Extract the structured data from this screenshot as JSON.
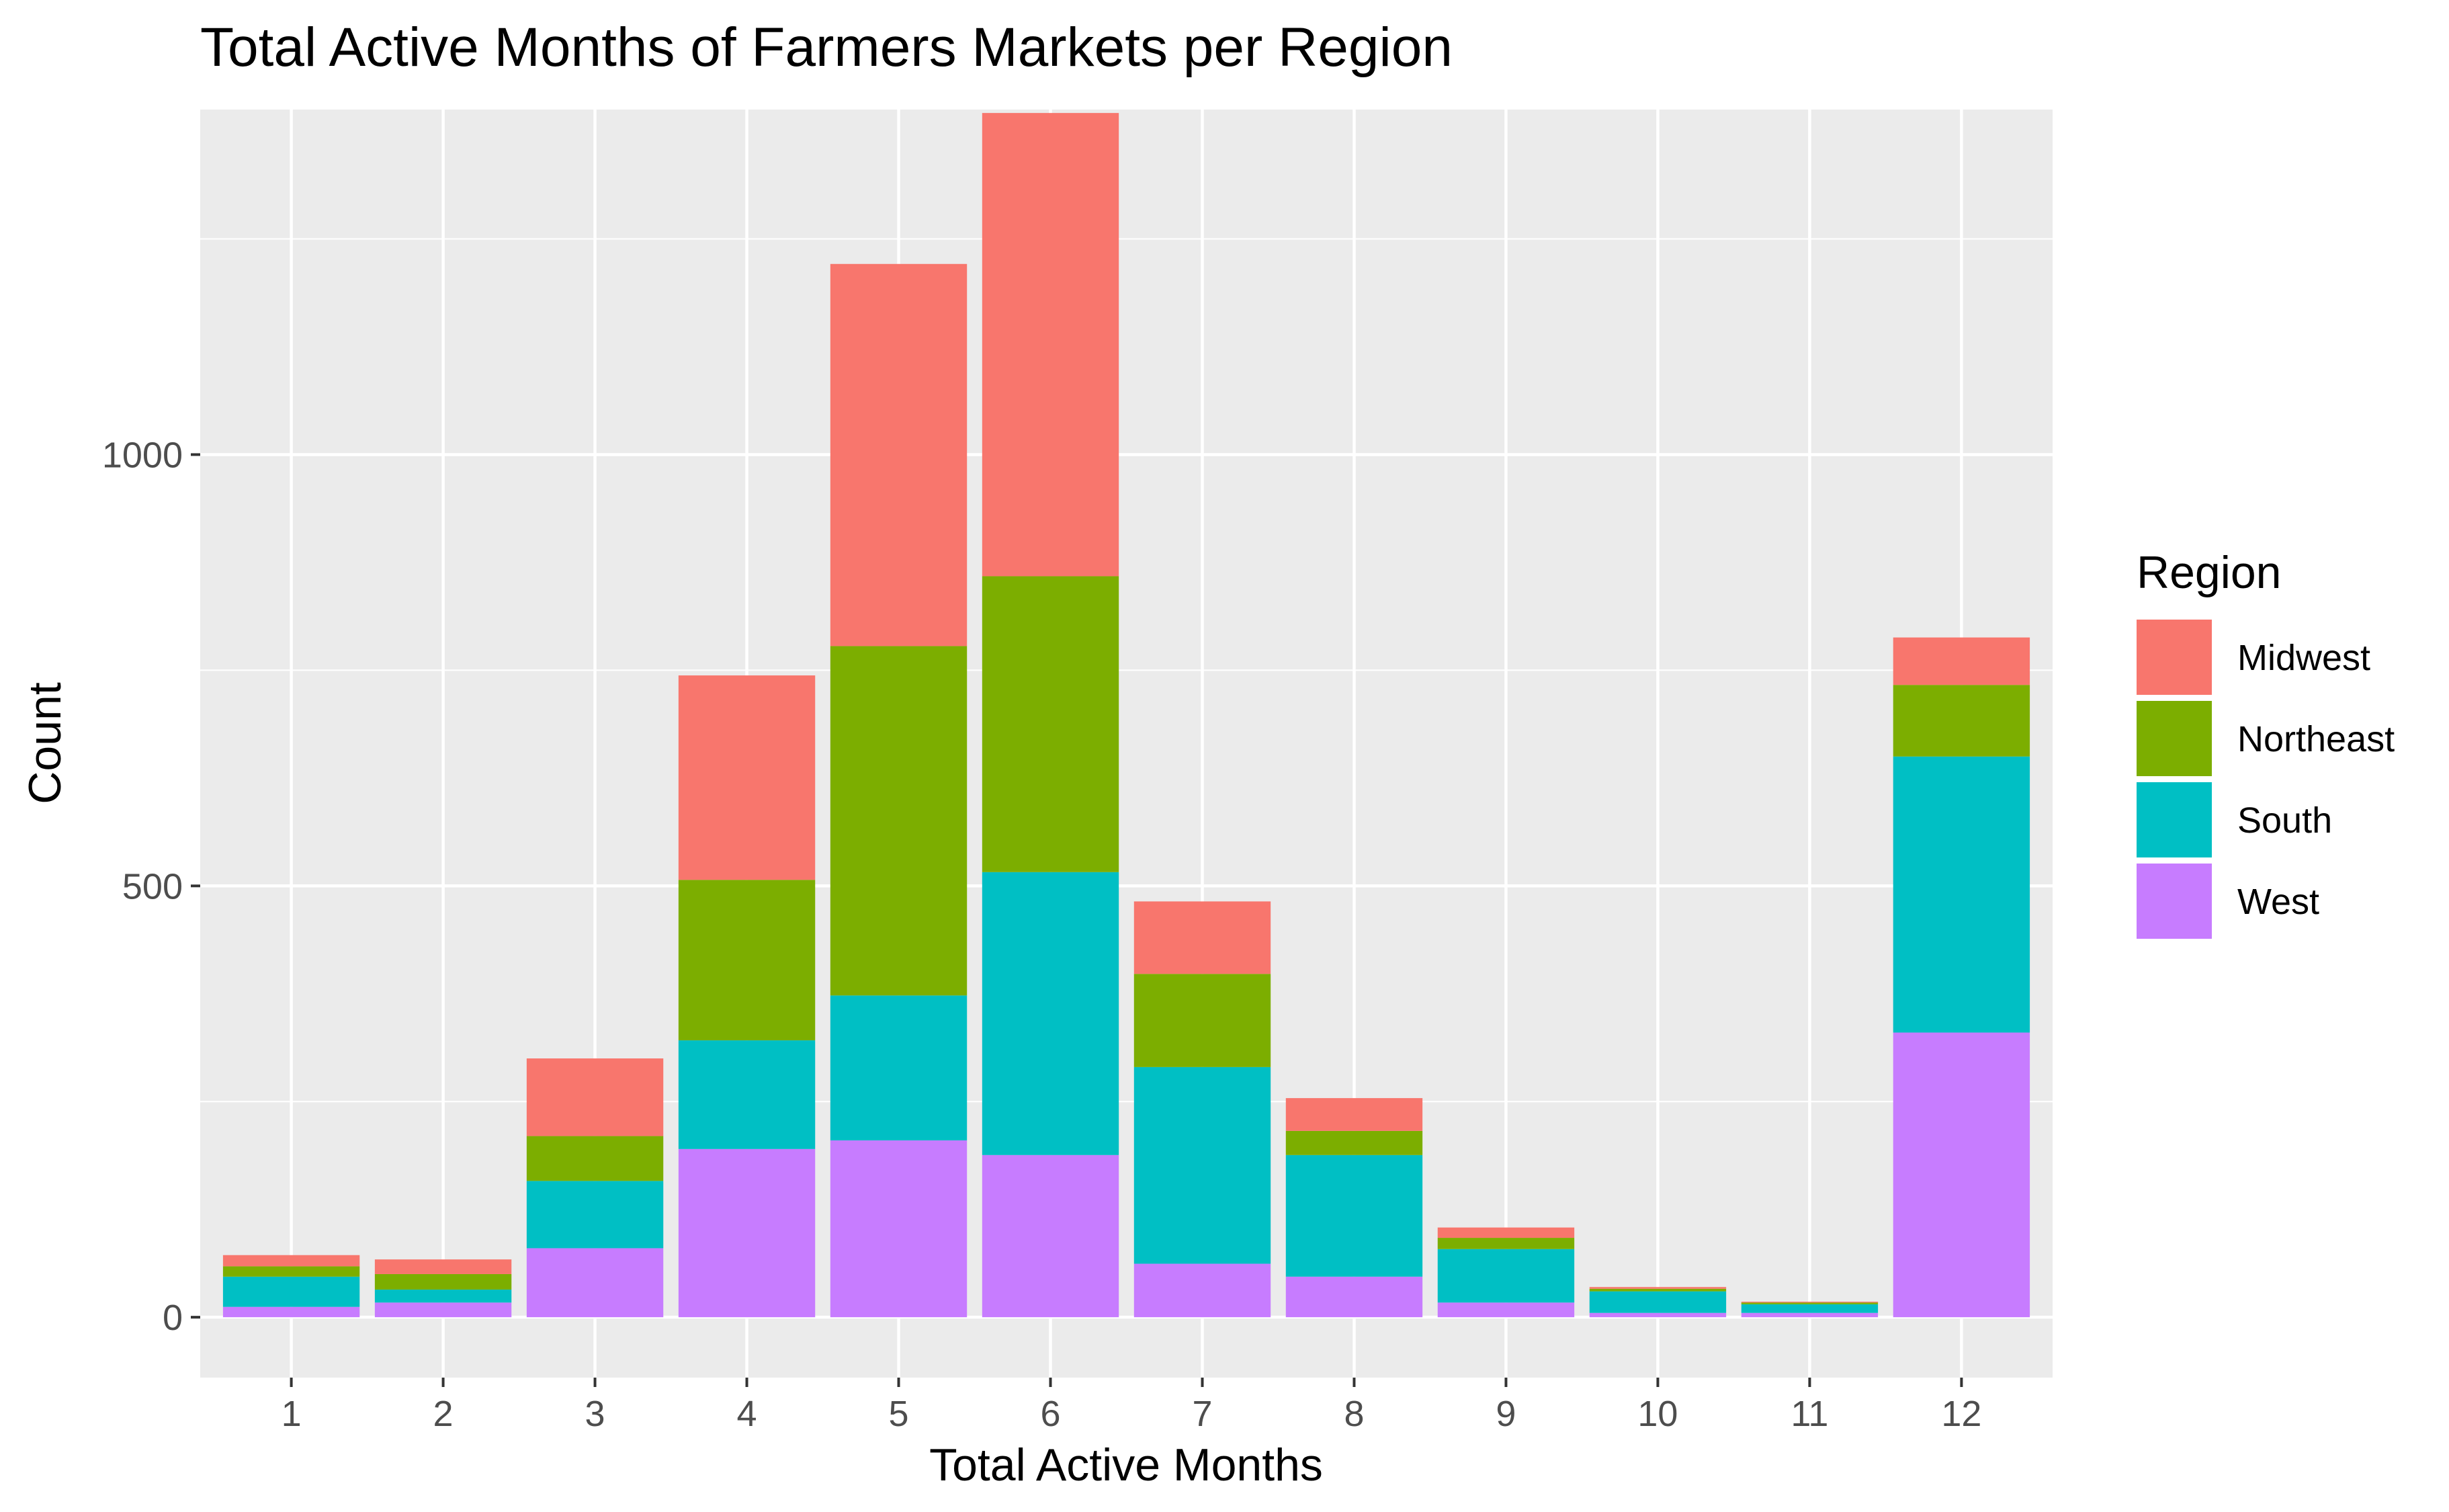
{
  "chart_data": {
    "type": "bar",
    "stacked": true,
    "title": "Total Active Months of Farmers Markets per Region",
    "xlabel": "Total Active Months",
    "ylabel": "Count",
    "categories": [
      "1",
      "2",
      "3",
      "4",
      "5",
      "6",
      "7",
      "8",
      "9",
      "10",
      "11",
      "12"
    ],
    "ylim": [
      -70,
      1400
    ],
    "yticks": [
      0,
      500,
      1000
    ],
    "ytick_labels": [
      "0",
      "500",
      "1000"
    ],
    "grid": true,
    "legend": {
      "title": "Region",
      "position": "right"
    },
    "series": [
      {
        "name": "West",
        "color": "#C77CFF",
        "values": [
          12,
          17,
          80,
          195,
          205,
          188,
          62,
          47,
          17,
          5,
          5,
          330
        ]
      },
      {
        "name": "South",
        "color": "#00BFC4",
        "values": [
          35,
          15,
          78,
          126,
          168,
          328,
          228,
          141,
          62,
          25,
          10,
          320
        ]
      },
      {
        "name": "Northeast",
        "color": "#7CAE00",
        "values": [
          12,
          18,
          52,
          186,
          405,
          343,
          108,
          28,
          13,
          3,
          2,
          83
        ]
      },
      {
        "name": "Midwest",
        "color": "#F8766D",
        "values": [
          13,
          17,
          90,
          237,
          443,
          537,
          84,
          38,
          12,
          2,
          1,
          55
        ]
      }
    ],
    "legend_order": [
      "Midwest",
      "Northeast",
      "South",
      "West"
    ]
  }
}
